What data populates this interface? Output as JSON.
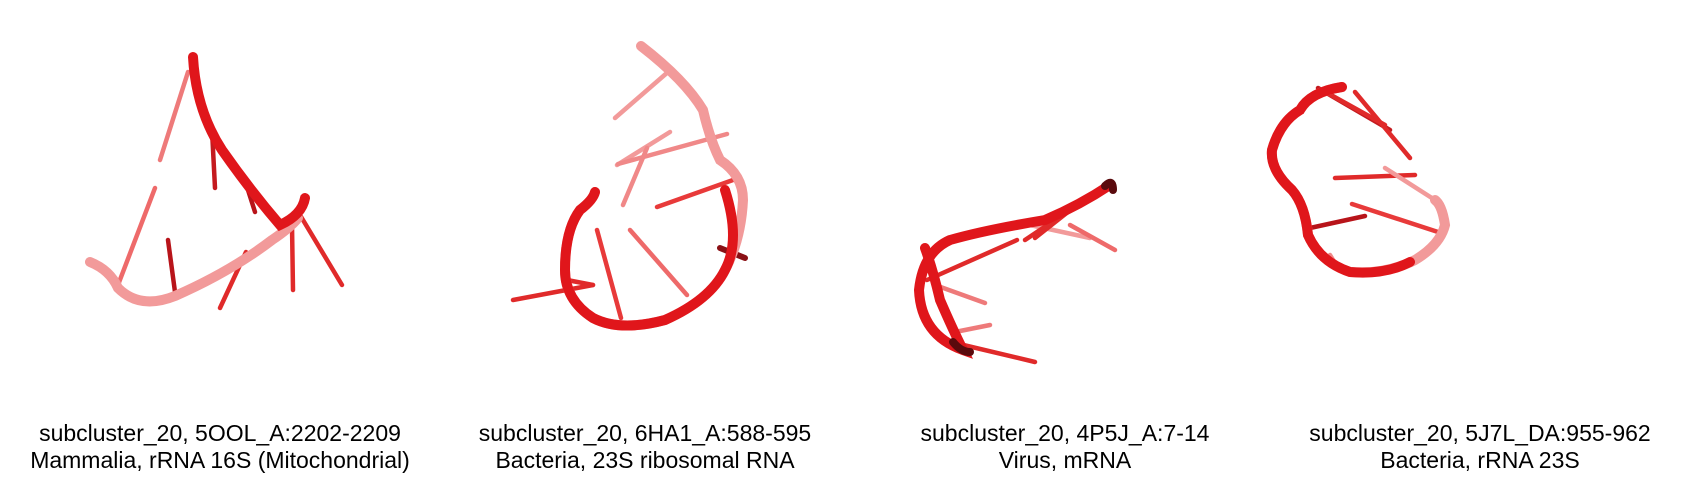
{
  "structures": [
    {
      "title": "subcluster_20, 5OOL_A:2202-2209",
      "subtitle": "Mammalia, rRNA 16S (Mitochondrial)"
    },
    {
      "title": "subcluster_20, 6HA1_A:588-595",
      "subtitle": "Bacteria, 23S ribosomal RNA"
    },
    {
      "title": "subcluster_20, 4P5J_A:7-14",
      "subtitle": "Virus, mRNA"
    },
    {
      "title": "subcluster_20, 5J7L_DA:955-962",
      "subtitle": "Bacteria, rRNA 23S"
    }
  ],
  "colors": {
    "backbone_dark": "#e0161b",
    "backbone_light": "#f29a9a",
    "stick": "#e02a2a"
  }
}
